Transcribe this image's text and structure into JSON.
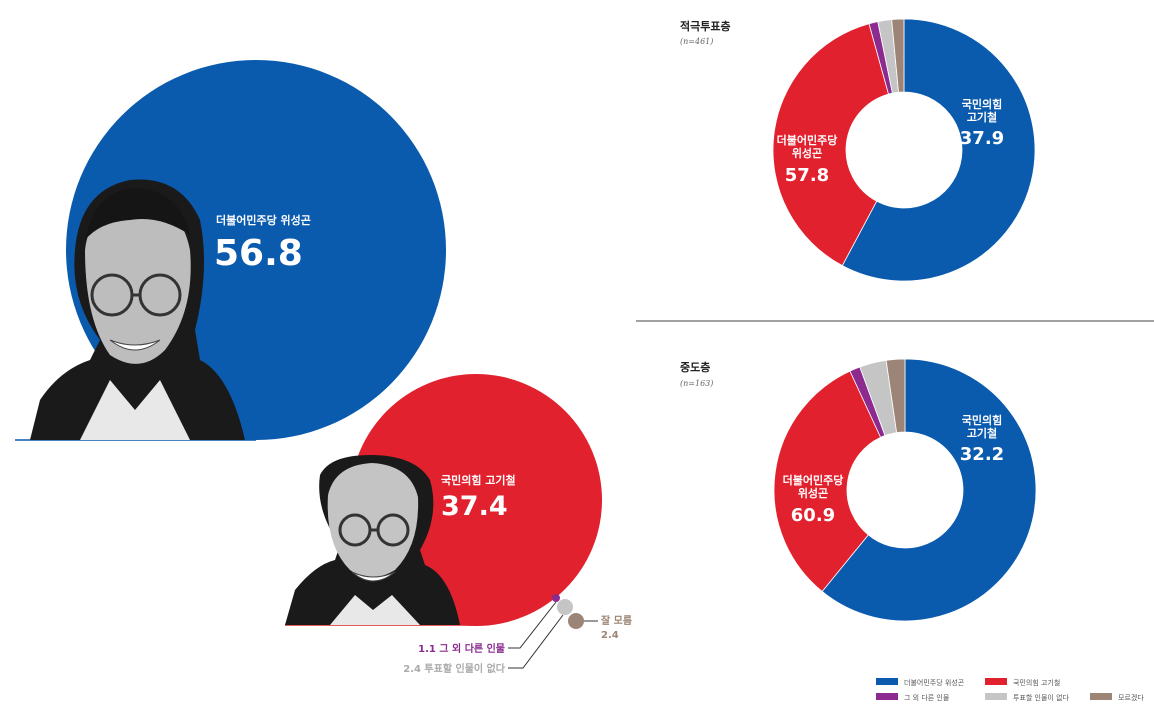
{
  "colors": {
    "blue": "#0A5AAE",
    "red": "#E1222E",
    "purple": "#8C2A8F",
    "lightgray": "#C5C5C5",
    "brown": "#9C8577"
  },
  "icons": {
    "candidate_1": "candidate-portrait-icon",
    "candidate_2": "candidate-portrait-icon"
  },
  "chart_data": [
    {
      "type": "bubble",
      "title": "",
      "series": [
        {
          "name": "더불어민주당 위성곤",
          "value": 56.8,
          "color": "#0A5AAE"
        },
        {
          "name": "국민의힘 고기철",
          "value": 37.4,
          "color": "#E1222E"
        },
        {
          "name": "그 외 다른 인물",
          "value": 1.1,
          "color": "#8C2A8F"
        },
        {
          "name": "투표할 인물이 없다",
          "value": 2.4,
          "color": "#C5C5C5"
        },
        {
          "name": "잘 모름",
          "value": 2.4,
          "color": "#9C8577"
        }
      ],
      "labels": {
        "blue_name": "더불어민주당 위성곤",
        "blue_value": "56.8",
        "red_name": "국민의힘 고기철",
        "red_value": "37.4",
        "other_label": "1.1  그 외 다른 인물",
        "none_label": "2.4 투표할 인물이 없다",
        "unsure_label": "잘 모름",
        "unsure_value": "2.4"
      }
    },
    {
      "type": "pie",
      "title": "적극투표층",
      "subtitle": "(n=461)",
      "values": [
        57.8,
        37.9,
        1.1,
        1.7,
        1.5
      ],
      "colors": [
        "#0A5AAE",
        "#E1222E",
        "#8C2A8F",
        "#C5C5C5",
        "#9C8577"
      ],
      "labels": {
        "blue_name_1": "더불어민주당",
        "blue_name_2": "위성곤",
        "blue_value": "57.8",
        "red_name_1": "국민의힘",
        "red_name_2": "고기철",
        "red_value": "37.9"
      }
    },
    {
      "type": "pie",
      "title": "중도층",
      "subtitle": "(n=163)",
      "values": [
        60.9,
        32.2,
        1.3,
        3.3,
        2.3
      ],
      "colors": [
        "#0A5AAE",
        "#E1222E",
        "#8C2A8F",
        "#C5C5C5",
        "#9C8577"
      ],
      "labels": {
        "blue_name_1": "더불어민주당",
        "blue_name_2": "위성곤",
        "blue_value": "60.9",
        "red_name_1": "국민의힘",
        "red_name_2": "고기철",
        "red_value": "32.2"
      }
    }
  ],
  "legend": [
    {
      "label": "더불어민주당 위성곤",
      "color": "#0A5AAE"
    },
    {
      "label": "국민의힘 고기철",
      "color": "#E1222E"
    },
    {
      "label": "그 외 다른 인물",
      "color": "#8C2A8F"
    },
    {
      "label": "투표할 인물이 없다",
      "color": "#C5C5C5"
    },
    {
      "label": "모르겠다",
      "color": "#9C8577"
    }
  ]
}
